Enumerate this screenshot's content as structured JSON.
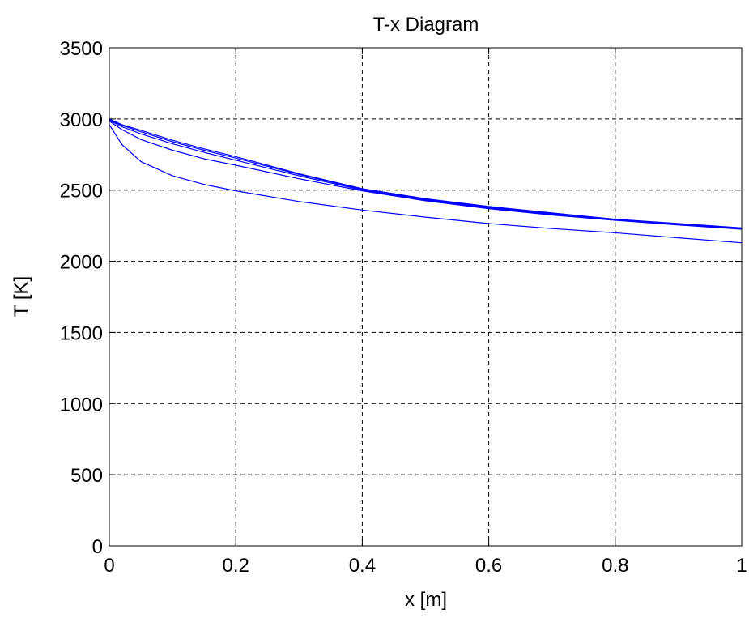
{
  "chart_data": {
    "type": "line",
    "title": "T-x Diagram",
    "xlabel": "x [m]",
    "ylabel": "T [K]",
    "xlim": [
      0,
      1
    ],
    "ylim": [
      0,
      3500
    ],
    "x_ticks": [
      0,
      0.2,
      0.4,
      0.6,
      0.8,
      1
    ],
    "y_ticks": [
      0,
      500,
      1000,
      1500,
      2000,
      2500,
      3000,
      3500
    ],
    "x_tick_labels": [
      "0",
      "0.2",
      "0.4",
      "0.6",
      "0.8",
      "1"
    ],
    "y_tick_labels": [
      "0",
      "500",
      "1000",
      "1500",
      "2000",
      "2500",
      "3000",
      "3500"
    ],
    "grid": true,
    "grid_style": "dashed",
    "line_color": "#0000ff",
    "x": [
      0,
      0.02,
      0.05,
      0.1,
      0.15,
      0.2,
      0.3,
      0.4,
      0.5,
      0.6,
      0.7,
      0.8,
      0.9,
      1.0
    ],
    "series": [
      {
        "values": [
          3000,
          2960,
          2920,
          2850,
          2790,
          2735,
          2615,
          2510,
          2440,
          2385,
          2340,
          2295,
          2265,
          2235
        ]
      },
      {
        "values": [
          2995,
          2955,
          2910,
          2840,
          2780,
          2725,
          2610,
          2505,
          2435,
          2380,
          2335,
          2295,
          2262,
          2230
        ]
      },
      {
        "values": [
          2990,
          2945,
          2895,
          2825,
          2765,
          2710,
          2600,
          2500,
          2430,
          2375,
          2330,
          2290,
          2258,
          2228
        ]
      },
      {
        "values": [
          2985,
          2925,
          2855,
          2780,
          2720,
          2675,
          2580,
          2495,
          2425,
          2370,
          2325,
          2288,
          2255,
          2225
        ]
      },
      {
        "values": [
          2960,
          2820,
          2700,
          2600,
          2540,
          2495,
          2420,
          2360,
          2310,
          2265,
          2230,
          2200,
          2165,
          2130
        ]
      }
    ]
  }
}
